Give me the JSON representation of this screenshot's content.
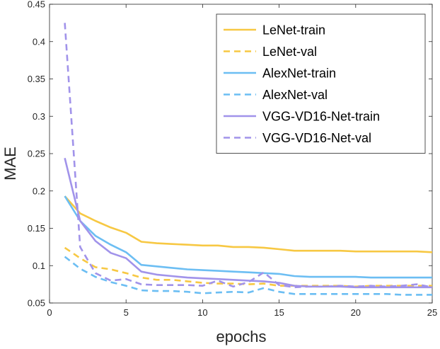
{
  "chart_data": {
    "type": "line",
    "xlabel": "epochs",
    "ylabel": "MAE",
    "xlim": [
      0,
      25
    ],
    "ylim": [
      0.05,
      0.45
    ],
    "xticks": [
      0,
      5,
      10,
      15,
      20,
      25
    ],
    "yticks": [
      0.05,
      0.1,
      0.15,
      0.2,
      0.25,
      0.3,
      0.35,
      0.4,
      0.45
    ],
    "xtick_labels": [
      "0",
      "5",
      "10",
      "15",
      "20",
      "25"
    ],
    "ytick_labels": [
      "0.05",
      "0.1",
      "0.15",
      "0.2",
      "0.25",
      "0.3",
      "0.35",
      "0.4",
      "0.45"
    ],
    "legend_position": "top-right",
    "grid": false,
    "x": [
      1,
      2,
      3,
      4,
      5,
      6,
      7,
      8,
      9,
      10,
      11,
      12,
      13,
      14,
      15,
      16,
      17,
      18,
      19,
      20,
      21,
      22,
      23,
      24,
      25
    ],
    "series": [
      {
        "name": "LeNet-train",
        "color": "#f7c843",
        "style": "solid",
        "values": [
          0.193,
          0.17,
          0.16,
          0.151,
          0.144,
          0.132,
          0.13,
          0.129,
          0.128,
          0.127,
          0.127,
          0.125,
          0.125,
          0.124,
          0.122,
          0.12,
          0.12,
          0.12,
          0.12,
          0.119,
          0.119,
          0.119,
          0.119,
          0.119,
          0.118
        ]
      },
      {
        "name": "LeNet-val",
        "color": "#f7c843",
        "style": "dashed",
        "values": [
          0.124,
          0.11,
          0.098,
          0.095,
          0.09,
          0.084,
          0.081,
          0.081,
          0.079,
          0.077,
          0.076,
          0.076,
          0.075,
          0.076,
          0.073,
          0.073,
          0.073,
          0.073,
          0.073,
          0.072,
          0.073,
          0.073,
          0.073,
          0.073,
          0.073
        ]
      },
      {
        "name": "AlexNet-train",
        "color": "#6cbef3",
        "style": "solid",
        "values": [
          0.193,
          0.16,
          0.14,
          0.128,
          0.118,
          0.101,
          0.099,
          0.097,
          0.095,
          0.094,
          0.093,
          0.092,
          0.091,
          0.09,
          0.089,
          0.086,
          0.085,
          0.085,
          0.085,
          0.085,
          0.084,
          0.084,
          0.084,
          0.084,
          0.084
        ]
      },
      {
        "name": "AlexNet-val",
        "color": "#6cbef3",
        "style": "dashed",
        "values": [
          0.112,
          0.096,
          0.085,
          0.078,
          0.073,
          0.067,
          0.066,
          0.066,
          0.065,
          0.063,
          0.064,
          0.065,
          0.064,
          0.07,
          0.065,
          0.062,
          0.062,
          0.062,
          0.062,
          0.062,
          0.062,
          0.062,
          0.061,
          0.061,
          0.061
        ]
      },
      {
        "name": "VGG-VD16-Net-train",
        "color": "#a193ea",
        "style": "solid",
        "values": [
          0.244,
          0.16,
          0.133,
          0.117,
          0.11,
          0.092,
          0.088,
          0.086,
          0.084,
          0.083,
          0.082,
          0.081,
          0.08,
          0.079,
          0.077,
          0.073,
          0.072,
          0.072,
          0.072,
          0.071,
          0.071,
          0.071,
          0.071,
          0.071,
          0.071
        ]
      },
      {
        "name": "VGG-VD16-Net-val",
        "color": "#a193ea",
        "style": "dashed",
        "values": [
          0.425,
          0.125,
          0.09,
          0.08,
          0.082,
          0.075,
          0.074,
          0.074,
          0.074,
          0.073,
          0.08,
          0.072,
          0.078,
          0.091,
          0.074,
          0.071,
          0.072,
          0.072,
          0.073,
          0.072,
          0.073,
          0.072,
          0.073,
          0.075,
          0.071
        ]
      }
    ]
  }
}
